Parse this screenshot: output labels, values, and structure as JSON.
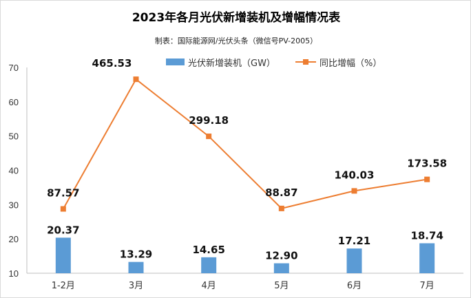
{
  "chart_data": {
    "type": "bar+line",
    "title": "2023年各月光伏新增装机及增幅情况表",
    "subtitle": "制表：国际能源网/光伏头条（微信号PV-2005）",
    "categories": [
      "1-2月",
      "3月",
      "4月",
      "5月",
      "6月",
      "7月"
    ],
    "series": [
      {
        "name": "光伏新增装机（GW）",
        "type": "bar",
        "axis": "primary",
        "color": "#5b9bd5",
        "values": [
          20.37,
          13.29,
          14.65,
          12.9,
          17.21,
          18.74
        ],
        "labels": [
          "20.37",
          "13.29",
          "14.65",
          "12.90",
          "17.21",
          "18.74"
        ]
      },
      {
        "name": "同比增幅（%）",
        "type": "line",
        "axis": "secondary",
        "color": "#ed7d31",
        "values": [
          87.57,
          465.53,
          299.18,
          88.87,
          140.03,
          173.58
        ],
        "labels": [
          "87.57",
          "465.53",
          "299.18",
          "88.87",
          "140.03",
          "173.58"
        ]
      }
    ],
    "ylim": [
      10,
      70
    ],
    "yticks": [
      "10",
      "20",
      "30",
      "40",
      "50",
      "60",
      "70"
    ],
    "y2lim": [
      -100,
      500
    ],
    "y2_visible": false,
    "grid": false,
    "legend": "top"
  }
}
